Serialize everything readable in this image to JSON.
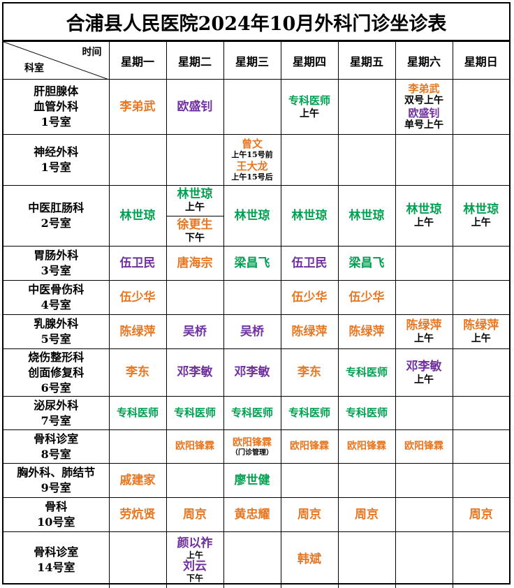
{
  "title": "合浦县人民医院2024年10月外科门诊坐诊表",
  "header": {
    "time_label": "时间",
    "dept_label": "科室",
    "days": [
      "星期一",
      "星期二",
      "星期三",
      "星期四",
      "星期五",
      "星期六",
      "星期日"
    ]
  },
  "colors": {
    "orange": "#e87722",
    "purple": "#7030a0",
    "green": "#00a050"
  },
  "rows": [
    {
      "dept": [
        "肝胆腺体",
        "血管外科",
        "1号室"
      ],
      "mon": "李弟武",
      "tue": "欧盛钊",
      "thu": "专科医师",
      "thu_note": "上午",
      "sat1": "李弟武",
      "sat1_note": "双号上午",
      "sat2": "欧盛钊",
      "sat2_note": "单号上午"
    },
    {
      "dept": [
        "神经外科",
        "1号室"
      ],
      "wed1": "曾文",
      "wed1_note": "上午15号前",
      "wed2": "王大龙",
      "wed2_note": "上午15号后"
    },
    {
      "dept": [
        "中医肛肠科",
        "2号室"
      ],
      "mon": "林世琼",
      "tue1": "林世琼",
      "tue1_note": "上午",
      "tue2": "徐更生",
      "tue2_note": "下午",
      "wed": "林世琼",
      "thu": "林世琼",
      "fri": "林世琼",
      "sat": "林世琼",
      "sat_note": "上午",
      "sun": "林世琼",
      "sun_note": "上午"
    },
    {
      "dept": [
        "胃肠外科",
        "3号室"
      ],
      "mon": "伍卫民",
      "tue": "唐海宗",
      "wed": "梁昌飞",
      "thu": "伍卫民",
      "fri": "梁昌飞"
    },
    {
      "dept": [
        "中医骨伤科",
        "4号室"
      ],
      "mon": "伍少华",
      "thu": "伍少华",
      "fri": "伍少华"
    },
    {
      "dept": [
        "乳腺外科",
        "5号室"
      ],
      "mon": "陈绿萍",
      "tue": "吴桥",
      "wed": "吴桥",
      "thu": "陈绿萍",
      "fri": "陈绿萍",
      "sat": "陈绿萍",
      "sat_note": "上午",
      "sun": "陈绿萍",
      "sun_note": "上午"
    },
    {
      "dept": [
        "烧伤整形科",
        "创面修复科",
        "6号室"
      ],
      "mon": "李东",
      "tue": "邓李敏",
      "wed": "邓李敏",
      "thu": "李东",
      "fri": "专科医师",
      "sat": "邓李敏",
      "sat_note": "上午"
    },
    {
      "dept": [
        "泌尿外科",
        "7号室"
      ],
      "mon": "专科医师",
      "tue": "专科医师",
      "wed": "专科医师",
      "thu": "专科医师",
      "fri": "专科医师"
    },
    {
      "dept": [
        "骨科诊室",
        "8号室"
      ],
      "tue": "欧阳锋霖",
      "wed": "欧阳锋霖",
      "wed_note": "（门诊管理）",
      "thu": "欧阳锋霖",
      "fri": "欧阳锋霖",
      "sat": "欧阳锋霖"
    },
    {
      "dept": [
        "胸外科、肺结节",
        "9号室"
      ],
      "mon": "戚建家",
      "wed": "廖世健"
    },
    {
      "dept": [
        "骨科",
        "10号室"
      ],
      "mon": "劳炕贤",
      "tue": "周京",
      "wed": "黄忠耀",
      "thu": "周京",
      "fri": "周京",
      "sun": "周京"
    },
    {
      "dept": [
        "骨科诊室",
        "14号室"
      ],
      "tue1": "颜以祚",
      "tue1_note": "上午",
      "tue2": "刘云",
      "tue2_note": "下午",
      "thu": "韩斌"
    }
  ]
}
